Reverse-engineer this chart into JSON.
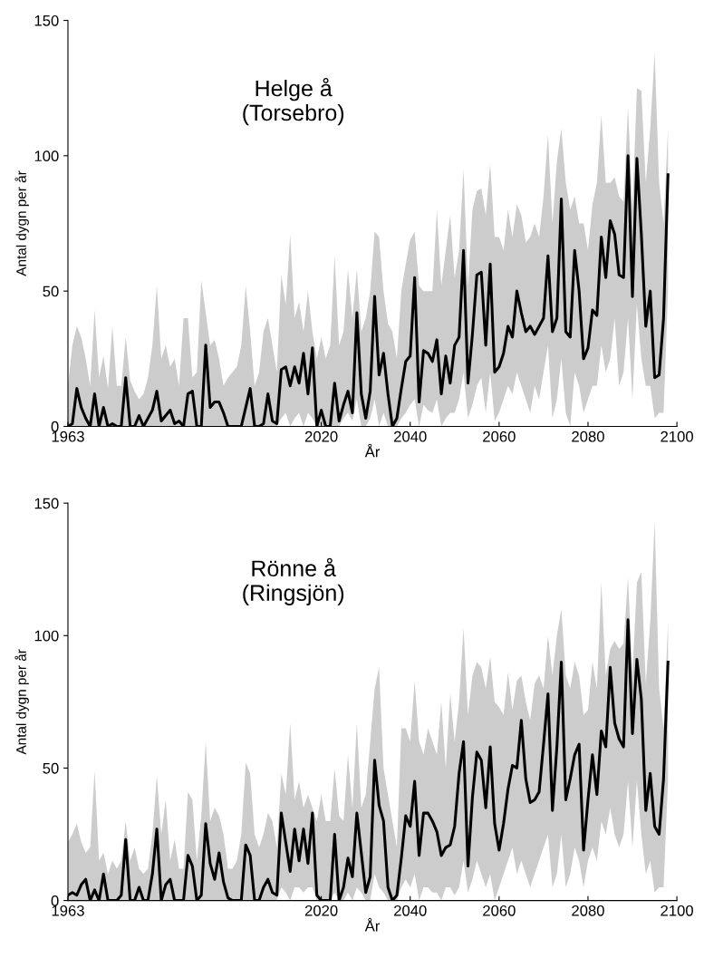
{
  "chart_data": [
    {
      "type": "line",
      "annotations": [
        "Helge å\n(Torsebro)"
      ],
      "xlabel": "År",
      "ylabel": "Antal dygn per år",
      "xlim": [
        1963,
        2100
      ],
      "xticks": [
        1963,
        2020,
        2040,
        2060,
        2080,
        2100
      ],
      "ylim": [
        0,
        150
      ],
      "yticks": [
        0,
        50,
        100,
        150
      ],
      "grid": false,
      "legend": false,
      "marker": "none",
      "line_style": "solid",
      "x": [
        1963,
        1964,
        1965,
        1966,
        1967,
        1968,
        1969,
        1970,
        1971,
        1972,
        1973,
        1974,
        1975,
        1976,
        1977,
        1978,
        1979,
        1980,
        1981,
        1982,
        1983,
        1984,
        1985,
        1986,
        1987,
        1988,
        1989,
        1990,
        1991,
        1992,
        1993,
        1994,
        1995,
        1996,
        1997,
        1998,
        1999,
        2000,
        2001,
        2002,
        2003,
        2004,
        2005,
        2006,
        2007,
        2008,
        2009,
        2010,
        2011,
        2012,
        2013,
        2014,
        2015,
        2016,
        2017,
        2018,
        2019,
        2020,
        2021,
        2022,
        2023,
        2024,
        2025,
        2026,
        2027,
        2028,
        2029,
        2030,
        2031,
        2032,
        2033,
        2034,
        2035,
        2036,
        2037,
        2038,
        2039,
        2040,
        2041,
        2042,
        2043,
        2044,
        2045,
        2046,
        2047,
        2048,
        2049,
        2050,
        2051,
        2052,
        2053,
        2054,
        2055,
        2056,
        2057,
        2058,
        2059,
        2060,
        2061,
        2062,
        2063,
        2064,
        2065,
        2066,
        2067,
        2068,
        2069,
        2070,
        2071,
        2072,
        2073,
        2074,
        2075,
        2076,
        2077,
        2078,
        2079,
        2080,
        2081,
        2082,
        2083,
        2084,
        2085,
        2086,
        2087,
        2088,
        2089,
        2090,
        2091,
        2092,
        2093,
        2094,
        2095,
        2096,
        2097,
        2098
      ],
      "series": [
        {
          "color": "#000000",
          "values": [
            0,
            1,
            14,
            7,
            3,
            0,
            12,
            0,
            7,
            0,
            1,
            0,
            0,
            18,
            0,
            0,
            4,
            0,
            3,
            6,
            13,
            2,
            4,
            6,
            1,
            2,
            0,
            12,
            13,
            0,
            0,
            30,
            7,
            9,
            9,
            5,
            0,
            0,
            0,
            0,
            7,
            14,
            0,
            0,
            1,
            12,
            2,
            1,
            21,
            22,
            15,
            22,
            16,
            27,
            12,
            29,
            0,
            6,
            0,
            0,
            16,
            2,
            8,
            13,
            5,
            42,
            12,
            3,
            13,
            48,
            19,
            27,
            12,
            0,
            3,
            14,
            24,
            26,
            55,
            9,
            28,
            27,
            24,
            32,
            12,
            26,
            16,
            30,
            33,
            65,
            16,
            34,
            56,
            57,
            30,
            60,
            20,
            22,
            27,
            37,
            33,
            50,
            42,
            35,
            37,
            34,
            37,
            40,
            63,
            35,
            40,
            84,
            35,
            33,
            65,
            50,
            25,
            29,
            43,
            41,
            70,
            55,
            76,
            71,
            56,
            55,
            100,
            48,
            99,
            71,
            37,
            50,
            18,
            19,
            40,
            93
          ],
          "lower": [
            0,
            0,
            0,
            0,
            0,
            0,
            0,
            0,
            0,
            0,
            0,
            0,
            0,
            0,
            0,
            0,
            0,
            0,
            0,
            0,
            0,
            0,
            0,
            0,
            0,
            0,
            0,
            0,
            0,
            0,
            0,
            0,
            0,
            0,
            0,
            0,
            0,
            0,
            0,
            0,
            0,
            0,
            0,
            0,
            0,
            0,
            0,
            0,
            3,
            5,
            0,
            3,
            5,
            0,
            5,
            3,
            0,
            0,
            0,
            0,
            0,
            0,
            3,
            5,
            2,
            10,
            0,
            0,
            3,
            10,
            0,
            5,
            0,
            0,
            0,
            3,
            5,
            8,
            10,
            0,
            8,
            6,
            5,
            10,
            0,
            3,
            5,
            5,
            10,
            20,
            3,
            8,
            15,
            18,
            5,
            20,
            2,
            5,
            10,
            15,
            12,
            20,
            15,
            10,
            5,
            15,
            10,
            20,
            30,
            3,
            10,
            25,
            5,
            0,
            20,
            15,
            5,
            10,
            15,
            15,
            30,
            20,
            25,
            40,
            15,
            20,
            40,
            10,
            45,
            25,
            15,
            15,
            3,
            5,
            5,
            50
          ],
          "upper": [
            15,
            30,
            37,
            33,
            25,
            15,
            43,
            18,
            26,
            14,
            37,
            15,
            15,
            33,
            17,
            13,
            10,
            12,
            18,
            30,
            52,
            25,
            30,
            22,
            25,
            15,
            40,
            40,
            18,
            20,
            54,
            42,
            30,
            32,
            25,
            15,
            18,
            20,
            22,
            30,
            52,
            35,
            15,
            20,
            35,
            40,
            30,
            20,
            56,
            45,
            71,
            40,
            46,
            35,
            50,
            35,
            25,
            33,
            25,
            30,
            63,
            30,
            35,
            58,
            40,
            58,
            35,
            40,
            50,
            72,
            70,
            50,
            38,
            35,
            25,
            50,
            60,
            69,
            72,
            52,
            50,
            50,
            50,
            80,
            52,
            65,
            78,
            55,
            65,
            95,
            52,
            80,
            87,
            88,
            78,
            97,
            70,
            70,
            65,
            80,
            70,
            82,
            78,
            68,
            70,
            75,
            70,
            85,
            108,
            75,
            98,
            110,
            90,
            80,
            85,
            75,
            75,
            65,
            82,
            90,
            115,
            90,
            90,
            92,
            85,
            83,
            118,
            80,
            125,
            124,
            90,
            110,
            138,
            90,
            75,
            110
          ]
        }
      ]
    },
    {
      "type": "line",
      "annotations": [
        "Rönne å\n(Ringsjön)"
      ],
      "xlabel": "År",
      "ylabel": "Antal dygn per år",
      "xlim": [
        1963,
        2100
      ],
      "xticks": [
        1963,
        2020,
        2040,
        2060,
        2080,
        2100
      ],
      "ylim": [
        0,
        150
      ],
      "yticks": [
        0,
        50,
        100,
        150
      ],
      "grid": false,
      "legend": false,
      "marker": "none",
      "line_style": "solid",
      "x": [
        1963,
        1964,
        1965,
        1966,
        1967,
        1968,
        1969,
        1970,
        1971,
        1972,
        1973,
        1974,
        1975,
        1976,
        1977,
        1978,
        1979,
        1980,
        1981,
        1982,
        1983,
        1984,
        1985,
        1986,
        1987,
        1988,
        1989,
        1990,
        1991,
        1992,
        1993,
        1994,
        1995,
        1996,
        1997,
        1998,
        1999,
        2000,
        2001,
        2002,
        2003,
        2004,
        2005,
        2006,
        2007,
        2008,
        2009,
        2010,
        2011,
        2012,
        2013,
        2014,
        2015,
        2016,
        2017,
        2018,
        2019,
        2020,
        2021,
        2022,
        2023,
        2024,
        2025,
        2026,
        2027,
        2028,
        2029,
        2030,
        2031,
        2032,
        2033,
        2034,
        2035,
        2036,
        2037,
        2038,
        2039,
        2040,
        2041,
        2042,
        2043,
        2044,
        2045,
        2046,
        2047,
        2048,
        2049,
        2050,
        2051,
        2052,
        2053,
        2054,
        2055,
        2056,
        2057,
        2058,
        2059,
        2060,
        2061,
        2062,
        2063,
        2064,
        2065,
        2066,
        2067,
        2068,
        2069,
        2070,
        2071,
        2072,
        2073,
        2074,
        2075,
        2076,
        2077,
        2078,
        2079,
        2080,
        2081,
        2082,
        2083,
        2084,
        2085,
        2086,
        2087,
        2088,
        2089,
        2090,
        2091,
        2092,
        2093,
        2094,
        2095,
        2096,
        2097,
        2098
      ],
      "series": [
        {
          "color": "#000000",
          "values": [
            2,
            3,
            2,
            6,
            8,
            0,
            4,
            0,
            10,
            0,
            0,
            0,
            2,
            23,
            0,
            0,
            5,
            0,
            0,
            10,
            27,
            0,
            6,
            8,
            0,
            0,
            0,
            17,
            13,
            0,
            2,
            29,
            14,
            8,
            18,
            7,
            1,
            0,
            0,
            0,
            21,
            17,
            0,
            0,
            5,
            8,
            3,
            2,
            33,
            22,
            11,
            27,
            15,
            27,
            14,
            33,
            2,
            0,
            0,
            0,
            25,
            0,
            5,
            16,
            9,
            33,
            18,
            3,
            9,
            53,
            36,
            30,
            5,
            0,
            2,
            16,
            32,
            28,
            45,
            17,
            33,
            33,
            30,
            26,
            17,
            20,
            21,
            28,
            48,
            60,
            13,
            39,
            56,
            53,
            35,
            58,
            29,
            19,
            29,
            42,
            51,
            50,
            68,
            46,
            37,
            38,
            41,
            59,
            78,
            34,
            58,
            90,
            38,
            46,
            55,
            59,
            19,
            38,
            55,
            40,
            64,
            58,
            88,
            67,
            61,
            58,
            106,
            63,
            91,
            76,
            34,
            48,
            28,
            25,
            46,
            90
          ],
          "lower": [
            0,
            0,
            0,
            0,
            0,
            0,
            0,
            0,
            0,
            0,
            0,
            0,
            0,
            0,
            0,
            0,
            0,
            0,
            0,
            0,
            0,
            0,
            0,
            0,
            0,
            0,
            0,
            0,
            0,
            0,
            0,
            0,
            0,
            0,
            0,
            0,
            0,
            0,
            0,
            0,
            0,
            0,
            0,
            0,
            0,
            0,
            0,
            0,
            5,
            3,
            0,
            5,
            5,
            3,
            5,
            5,
            0,
            0,
            0,
            0,
            3,
            0,
            0,
            3,
            0,
            5,
            3,
            0,
            0,
            10,
            5,
            3,
            0,
            0,
            0,
            5,
            8,
            5,
            10,
            0,
            5,
            5,
            3,
            3,
            0,
            5,
            5,
            2,
            5,
            15,
            3,
            8,
            15,
            10,
            5,
            10,
            0,
            5,
            10,
            15,
            20,
            10,
            15,
            10,
            5,
            10,
            15,
            20,
            25,
            5,
            10,
            25,
            5,
            10,
            20,
            15,
            5,
            15,
            20,
            15,
            30,
            25,
            35,
            25,
            20,
            25,
            45,
            20,
            45,
            25,
            10,
            15,
            3,
            5,
            5,
            45
          ],
          "upper": [
            22,
            25,
            29,
            22,
            18,
            20,
            49,
            15,
            18,
            10,
            15,
            12,
            15,
            30,
            15,
            20,
            12,
            10,
            12,
            25,
            47,
            25,
            38,
            15,
            23,
            12,
            12,
            41,
            38,
            15,
            32,
            60,
            30,
            35,
            32,
            25,
            12,
            12,
            15,
            25,
            52,
            48,
            25,
            20,
            25,
            33,
            30,
            20,
            48,
            40,
            67,
            38,
            45,
            35,
            40,
            35,
            30,
            40,
            30,
            30,
            50,
            32,
            30,
            55,
            35,
            67,
            35,
            40,
            60,
            80,
            88,
            50,
            40,
            30,
            20,
            65,
            65,
            60,
            83,
            60,
            55,
            65,
            60,
            55,
            75,
            50,
            78,
            60,
            75,
            103,
            70,
            85,
            90,
            88,
            80,
            92,
            75,
            73,
            70,
            86,
            72,
            83,
            85,
            75,
            68,
            82,
            85,
            80,
            100,
            85,
            100,
            110,
            85,
            80,
            90,
            85,
            70,
            72,
            90,
            80,
            120,
            85,
            95,
            98,
            95,
            97,
            122,
            85,
            120,
            124,
            82,
            105,
            143,
            80,
            65,
            105
          ]
        }
      ]
    }
  ]
}
